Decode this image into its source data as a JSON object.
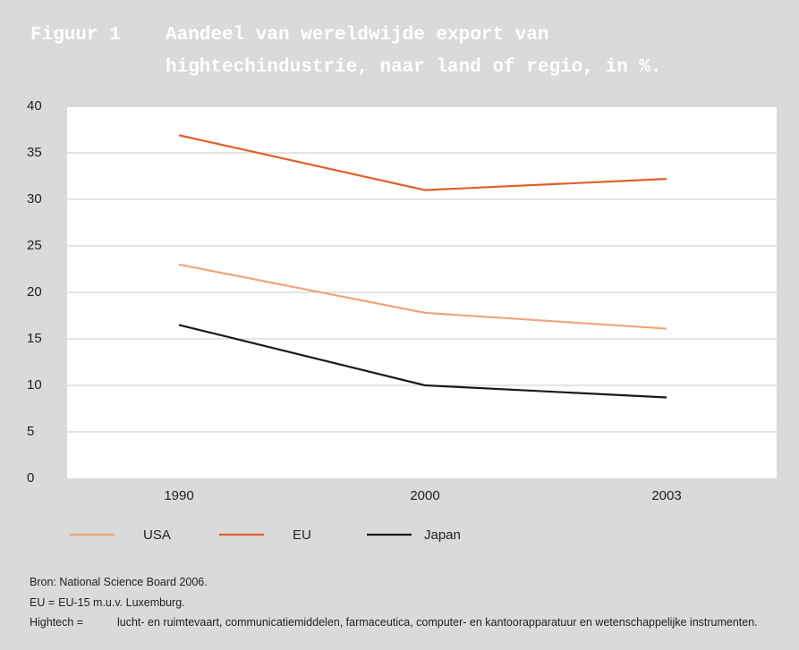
{
  "chart_data": {
    "type": "line",
    "label": "Figuur 1",
    "title": "Aandeel van wereldwijde export van hightechindustrie, naar land of regio, in %.",
    "categories": [
      "1990",
      "2000",
      "2003"
    ],
    "series": [
      {
        "name": "USA",
        "color": "#f0a57a",
        "values": [
          23,
          17.8,
          16.1
        ]
      },
      {
        "name": "EU",
        "color": "#e0602a",
        "values": [
          36.9,
          31,
          32.2
        ]
      },
      {
        "name": "Japan",
        "color": "#1a1a1a",
        "values": [
          16.5,
          10,
          8.7
        ]
      }
    ],
    "ylim": [
      0,
      40
    ],
    "yticks": [
      0,
      5,
      10,
      15,
      20,
      25,
      30,
      35,
      40
    ],
    "grid": true,
    "source": "Bron: National Science Board 2006.",
    "definitions": [
      {
        "term": "EU =",
        "text": "EU-15 m.u.v. Luxemburg."
      },
      {
        "term": "Hightech =",
        "text": "lucht- en ruimtevaart, communicatiemiddelen, farmaceutica, computer- en kantoorapparatuur en wetenschappelijke instrumenten."
      }
    ]
  }
}
